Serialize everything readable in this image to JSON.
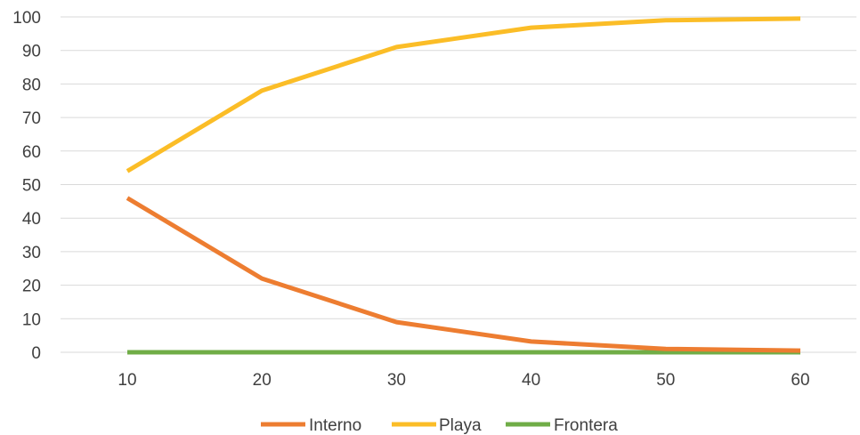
{
  "chart_data": {
    "type": "line",
    "x": [
      10,
      20,
      30,
      40,
      50,
      60
    ],
    "ylim": [
      0,
      100
    ],
    "ytick_step": 10,
    "yticks": [
      "0",
      "10",
      "20",
      "30",
      "40",
      "50",
      "60",
      "70",
      "80",
      "90",
      "100"
    ],
    "xticks": [
      "10",
      "20",
      "30",
      "40",
      "50",
      "60"
    ],
    "grid": true,
    "legend_position": "bottom",
    "series": [
      {
        "name": "Interno",
        "color": "#ed7d31",
        "values": [
          46,
          22,
          9,
          3.2,
          1,
          0.5
        ]
      },
      {
        "name": "Playa",
        "color": "#fbbd27",
        "values": [
          54,
          78,
          91,
          96.8,
          99,
          99.5
        ]
      },
      {
        "name": "Frontera",
        "color": "#70ad47",
        "values": [
          0,
          0,
          0,
          0,
          0,
          0
        ]
      }
    ]
  }
}
